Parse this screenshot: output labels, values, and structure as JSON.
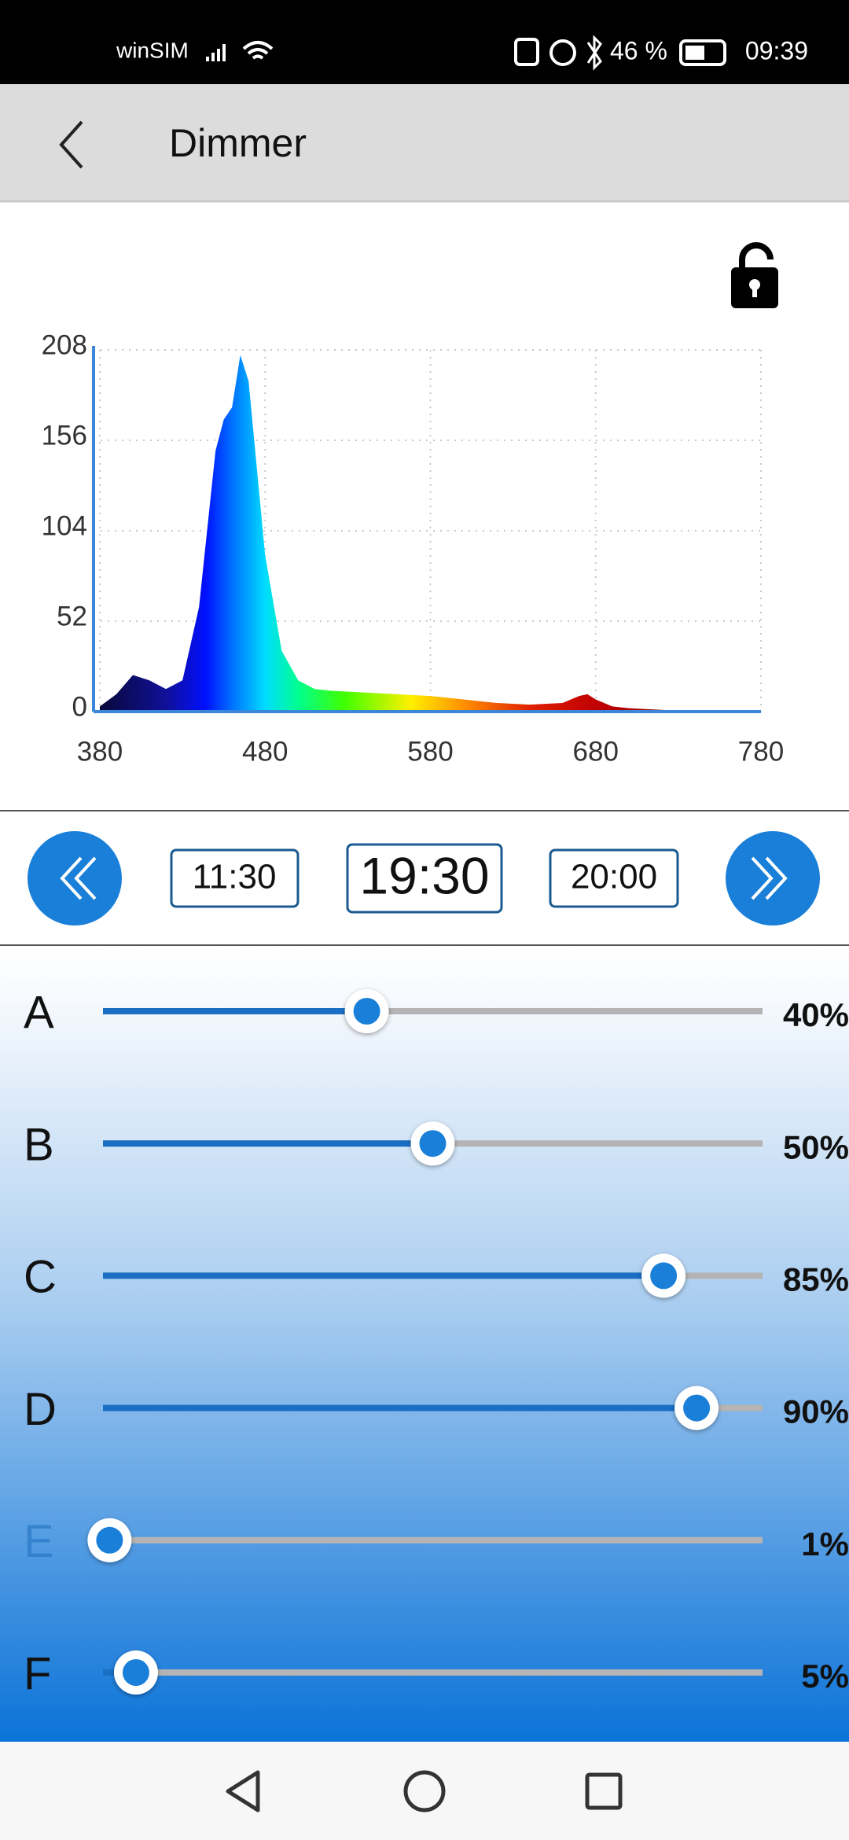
{
  "status_bar": {
    "carrier": "winSIM",
    "battery": "46 %",
    "time": "09:39"
  },
  "header": {
    "title": "Dimmer"
  },
  "chart_data": {
    "type": "area",
    "x": [
      380,
      390,
      400,
      410,
      420,
      430,
      440,
      450,
      455,
      460,
      465,
      470,
      475,
      480,
      490,
      500,
      510,
      520,
      540,
      560,
      580,
      600,
      620,
      640,
      660,
      670,
      675,
      680,
      690,
      700,
      720,
      740,
      780
    ],
    "values": [
      3,
      10,
      21,
      18,
      13,
      18,
      60,
      150,
      168,
      175,
      205,
      190,
      140,
      90,
      35,
      18,
      13,
      12,
      11,
      10,
      9,
      7,
      5,
      4,
      5,
      9,
      10,
      7,
      3,
      2,
      1,
      0,
      0
    ],
    "xlim": [
      380,
      780
    ],
    "ylim": [
      0,
      208
    ],
    "xticks": [
      380,
      480,
      580,
      680,
      780
    ],
    "yticks": [
      0,
      52,
      104,
      156,
      208
    ],
    "grid": true
  },
  "times": {
    "previous": "11:30",
    "current": "19:30",
    "next": "20:00"
  },
  "channels": {
    "lim": [
      0,
      100
    ],
    "items": [
      {
        "label": "A",
        "value": 40,
        "value_label": "40%",
        "active": true
      },
      {
        "label": "B",
        "value": 50,
        "value_label": "50%",
        "active": true
      },
      {
        "label": "C",
        "value": 85,
        "value_label": "85%",
        "active": true
      },
      {
        "label": "D",
        "value": 90,
        "value_label": "90%",
        "active": true
      },
      {
        "label": "E",
        "value": 1,
        "value_label": "1%",
        "active": false
      },
      {
        "label": "F",
        "value": 5,
        "value_label": "5%",
        "active": true
      }
    ]
  }
}
